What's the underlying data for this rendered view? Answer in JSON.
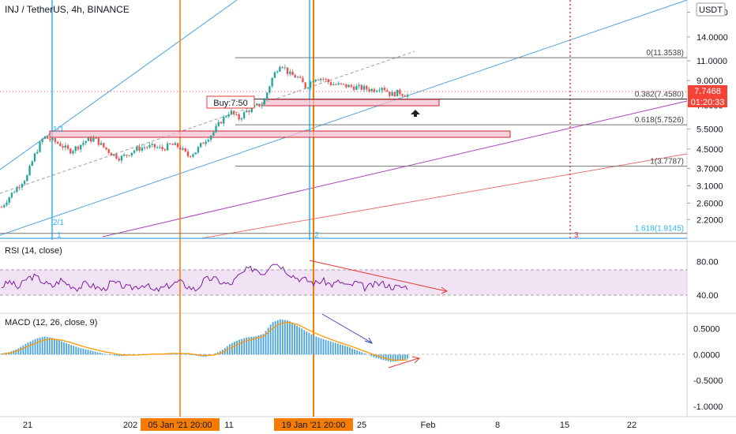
{
  "header": {
    "symbol_title": "INJ / TetherUS, 4h, BINANCE",
    "currency_badge": "USDT",
    "top_price_label": "18.0000"
  },
  "colors": {
    "up_candle": "#26a69a",
    "down_candle": "#ef5350",
    "rsi_line": "#7b1fa2",
    "rsi_band": "#e1bee7",
    "macd_hist": "#4aa3df",
    "signal_line": "#ff9800",
    "vertical_marker": "#f57c00",
    "vertical_cyan": "#29b6f6",
    "channel_blue": "#4aa3df",
    "channel_purple": "#ab47bc",
    "channel_red": "#e57373",
    "price_tag": "#f44336"
  },
  "price_panel": {
    "last_price": "7.7468",
    "countdown": "01:20:33",
    "buy_label": "Buy:7:50",
    "arrow_icon": "up-arrow-icon",
    "fib_levels": [
      {
        "ratio": "0",
        "value": 11.3538,
        "label": "0(11.3538)"
      },
      {
        "ratio": "0.382",
        "value": 7.458,
        "label": "0.382(7.4580)"
      },
      {
        "ratio": "0.618",
        "value": 5.7526,
        "label": "0.618(5.7526)"
      },
      {
        "ratio": "1",
        "value": 3.7787,
        "label": "1(3.7787)"
      },
      {
        "ratio": "1.618",
        "value": 1.9145,
        "label": "1.618(1.9145)"
      }
    ],
    "cycle_labels": [
      "1/1",
      "2/1",
      "1",
      "2",
      "3"
    ]
  },
  "rsi_panel": {
    "title": "RSI (14, close)",
    "levels": [
      "80.00",
      "40.00"
    ]
  },
  "macd_panel": {
    "title": "MACD (12, 26, close, 9)",
    "levels": [
      "0.5000",
      "0.0000",
      "-0.5000",
      "-1.0000"
    ]
  },
  "time_axis": {
    "ticks": [
      "21",
      "202",
      "11",
      "25",
      "Feb",
      "8",
      "15",
      "22"
    ],
    "marker_labels": [
      "05 Jan '21   20:00",
      "19 Jan '21   20:00"
    ]
  },
  "chart_data": [
    {
      "type": "line",
      "name": "INJ/USDT 4h candlesticks",
      "title": "INJ / TetherUS, 4h, BINANCE",
      "yscale": "log",
      "yticks": [
        18.0,
        14.0,
        11.0,
        9.0,
        7.0,
        5.5,
        4.5,
        3.7,
        3.1,
        2.6,
        2.2
      ],
      "ylim": [
        1.85,
        18.8
      ],
      "x_ticks": [
        "21",
        "202",
        "11",
        "25",
        "Feb",
        "8",
        "15",
        "22"
      ],
      "close_path": [
        2.5,
        2.8,
        3.1,
        3.4,
        4.3,
        5.1,
        4.9,
        4.7,
        4.4,
        4.6,
        4.9,
        5.0,
        4.6,
        4.3,
        4.1,
        4.3,
        4.5,
        4.6,
        4.6,
        4.5,
        4.7,
        4.6,
        4.2,
        4.4,
        4.9,
        5.3,
        6.0,
        6.6,
        6.1,
        6.6,
        6.9,
        7.2,
        9.2,
        10.8,
        9.6,
        9.3,
        8.4,
        9.3,
        9.2,
        8.7,
        8.6,
        8.5,
        8.4,
        8.3,
        8.2,
        8.5,
        7.8,
        8.0,
        7.75
      ],
      "last_price": 7.7468,
      "buy_level": 7.5,
      "fib_retracement": [
        {
          "level": 0,
          "price": 11.3538
        },
        {
          "level": 0.382,
          "price": 7.458
        },
        {
          "level": 0.618,
          "price": 5.7526
        },
        {
          "level": 1,
          "price": 3.7787
        },
        {
          "level": 1.618,
          "price": 1.9145
        }
      ],
      "grid": true
    },
    {
      "type": "line",
      "name": "RSI (14, close)",
      "title": "RSI (14, close)",
      "ylim": [
        20,
        100
      ],
      "yticks": [
        80,
        40
      ],
      "band": [
        70,
        30
      ],
      "values": [
        50,
        56,
        48,
        60,
        62,
        55,
        50,
        58,
        52,
        48,
        54,
        50,
        46,
        55,
        52,
        48,
        50,
        53,
        44,
        48,
        52,
        56,
        50,
        46,
        58,
        60,
        55,
        52,
        62,
        70,
        72,
        65,
        80,
        75,
        66,
        60,
        58,
        54,
        57,
        52,
        56,
        50,
        55,
        48,
        52,
        54,
        50,
        49,
        50
      ]
    },
    {
      "type": "bar",
      "name": "MACD (12, 26, close, 9)",
      "title": "MACD (12, 26, close, 9)",
      "ylim": [
        -1.15,
        0.75
      ],
      "yticks": [
        0.5,
        0.0,
        -0.5,
        -1.0
      ],
      "histogram": [
        0.02,
        0.05,
        0.12,
        0.22,
        0.3,
        0.35,
        0.32,
        0.26,
        0.2,
        0.14,
        0.1,
        0.06,
        0.02,
        -0.01,
        -0.03,
        -0.02,
        0.0,
        0.01,
        0.02,
        0.02,
        0.03,
        0.03,
        0.01,
        -0.02,
        -0.05,
        0.0,
        0.08,
        0.2,
        0.28,
        0.33,
        0.35,
        0.4,
        0.62,
        0.68,
        0.65,
        0.55,
        0.45,
        0.36,
        0.3,
        0.25,
        0.2,
        0.15,
        0.08,
        0.02,
        -0.05,
        -0.1,
        -0.14,
        -0.12,
        -0.08
      ],
      "signal": [
        0.01,
        0.03,
        0.08,
        0.15,
        0.22,
        0.28,
        0.3,
        0.28,
        0.24,
        0.19,
        0.14,
        0.1,
        0.06,
        0.03,
        0.0,
        -0.01,
        -0.01,
        0.0,
        0.01,
        0.01,
        0.02,
        0.02,
        0.02,
        0.0,
        -0.02,
        -0.01,
        0.03,
        0.12,
        0.2,
        0.27,
        0.31,
        0.35,
        0.5,
        0.6,
        0.62,
        0.58,
        0.5,
        0.42,
        0.35,
        0.29,
        0.23,
        0.18,
        0.12,
        0.06,
        0.0,
        -0.05,
        -0.1,
        -0.11,
        -0.1
      ]
    }
  ]
}
